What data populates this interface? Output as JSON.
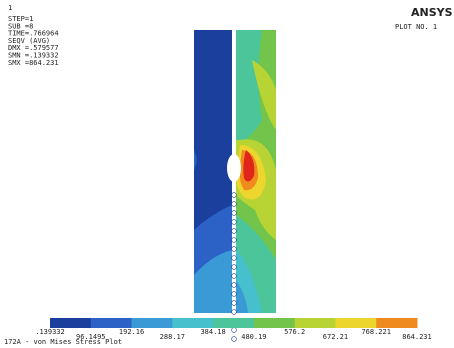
{
  "corner_mark": "1",
  "header": {
    "lines": [
      "STEP=1",
      "SUB =8",
      "TIME=.766964",
      "SEQV     (AVG)",
      "DMX =.579577",
      "SMN =.139332",
      "SMX =864.231"
    ],
    "logo": "ANSYS",
    "plot_no": "PLOT NO.   1"
  },
  "legend": {
    "colors": [
      "#1b3f9c",
      "#2c62c6",
      "#3a9ad6",
      "#45c0cc",
      "#4cc59a",
      "#72c54a",
      "#b8d434",
      "#ecd52c",
      "#ef8a1f",
      "#e0251b"
    ],
    "labels": [
      ".139332",
      "96.1495",
      "192.16",
      "288.17",
      "384.18",
      "480.19",
      "576.2",
      "672.21",
      "768.221",
      "864.231"
    ]
  },
  "footer": {
    "title": "172A - von Mises Stress Plot"
  }
}
